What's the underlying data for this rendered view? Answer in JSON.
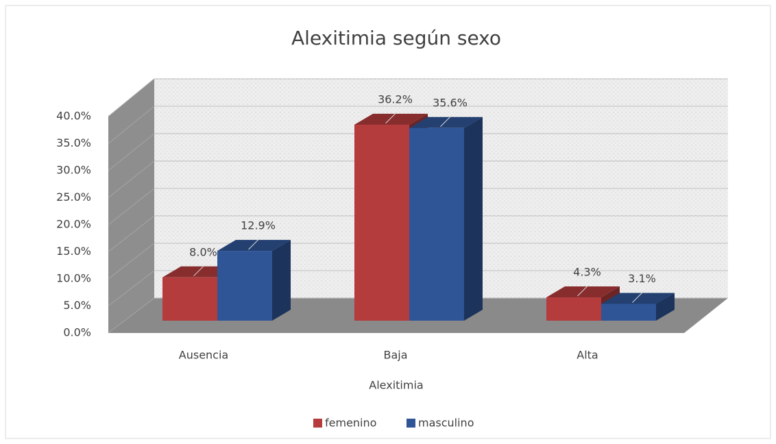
{
  "chart_data": {
    "type": "bar3d",
    "title": "Alexitimia según sexo",
    "x_label": "Alexitimia",
    "categories": [
      "Ausencia",
      "Baja",
      "Alta"
    ],
    "series": [
      {
        "name": "femenino",
        "color": "#b53c3c",
        "values": [
          8.0,
          36.2,
          4.3
        ],
        "value_labels": [
          "8.0%",
          "36.2%",
          "4.3%"
        ]
      },
      {
        "name": "masculino",
        "color": "#2f5597",
        "values": [
          12.9,
          35.6,
          3.1
        ],
        "value_labels": [
          "12.9%",
          "35.6%",
          "3.1%"
        ]
      }
    ],
    "ylim": [
      0,
      40
    ],
    "yticks": [
      {
        "value": 0,
        "label": "0.0%"
      },
      {
        "value": 5,
        "label": "5.0%"
      },
      {
        "value": 10,
        "label": "10.0%"
      },
      {
        "value": 15,
        "label": "15.0%"
      },
      {
        "value": 20,
        "label": "20.0%"
      },
      {
        "value": 25,
        "label": "25.0%"
      },
      {
        "value": 30,
        "label": "30.0%"
      },
      {
        "value": 35,
        "label": "35.0%"
      },
      {
        "value": 40,
        "label": "40.0%"
      }
    ],
    "grid": true,
    "legend": "bottom"
  }
}
